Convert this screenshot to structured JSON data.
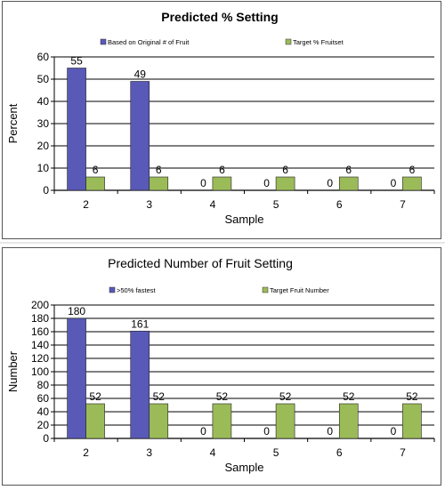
{
  "chart_data": [
    {
      "type": "bar",
      "title": "Predicted % Setting",
      "xlabel": "Sample",
      "ylabel": "Percent",
      "categories": [
        "2",
        "3",
        "4",
        "5",
        "6",
        "7"
      ],
      "series": [
        {
          "name": "Based on Original # of Fruit",
          "values": [
            55,
            49,
            0,
            0,
            0,
            0
          ],
          "color": "#5959b8"
        },
        {
          "name": "Target % Fruitset",
          "values": [
            6,
            6,
            6,
            6,
            6,
            6
          ],
          "color": "#9bbb59"
        }
      ],
      "ylim": [
        0,
        60
      ],
      "yticks": [
        0,
        10,
        20,
        30,
        40,
        50,
        60
      ],
      "grid": true,
      "legend": "top"
    },
    {
      "type": "bar",
      "title": "Predicted Number of Fruit Setting",
      "xlabel": "Sample",
      "ylabel": "Number",
      "categories": [
        "2",
        "3",
        "4",
        "5",
        "6",
        "7"
      ],
      "series": [
        {
          "name": ">50% fastest",
          "values": [
            180,
            161,
            0,
            0,
            0,
            0
          ],
          "color": "#5959b8"
        },
        {
          "name": "Target Fruit Number",
          "values": [
            52,
            52,
            52,
            52,
            52,
            52
          ],
          "color": "#9bbb59"
        }
      ],
      "ylim": [
        0,
        200
      ],
      "yticks": [
        0,
        20,
        40,
        60,
        80,
        100,
        120,
        140,
        160,
        180,
        200
      ],
      "grid": true,
      "legend": "top"
    }
  ]
}
